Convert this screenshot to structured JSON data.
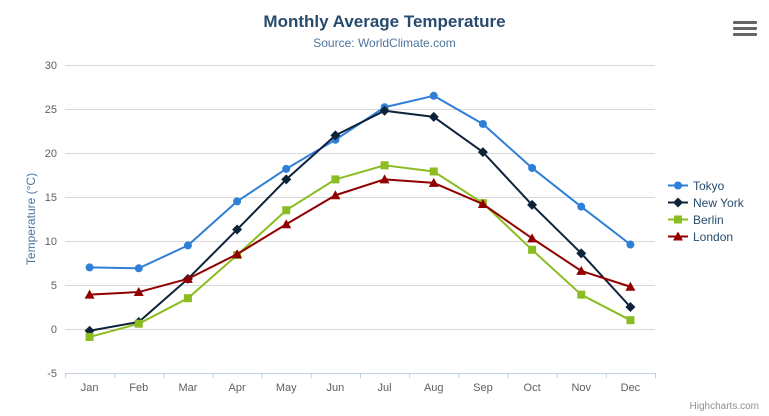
{
  "chart": {
    "title": "Monthly Average Temperature",
    "subtitle": "Source: WorldClimate.com",
    "credits": "Highcharts.com"
  },
  "theme": {
    "title_color": "#274b6d",
    "subtitle_color": "#4d759e",
    "axis_label_color": "#606060",
    "axis_title_color": "#4d759e",
    "legend_text_color": "#274b6d",
    "grid_color": "#d8d8d8",
    "axis_line_color": "#c0d0e0",
    "credits_color": "#909090",
    "menu_icon_color": "#666666",
    "background": "#ffffff"
  },
  "chart_data": {
    "type": "line",
    "title": "Monthly Average Temperature",
    "subtitle": "Source: WorldClimate.com",
    "xlabel": "",
    "ylabel": "Temperature (°C)",
    "ylim": [
      -5,
      30
    ],
    "tick_interval": 5,
    "grid": true,
    "legend_position": "right",
    "categories": [
      "Jan",
      "Feb",
      "Mar",
      "Apr",
      "May",
      "Jun",
      "Jul",
      "Aug",
      "Sep",
      "Oct",
      "Nov",
      "Dec"
    ],
    "series": [
      {
        "name": "Tokyo",
        "color": "#2f7ed8",
        "symbol": "circle",
        "values": [
          7.0,
          6.9,
          9.5,
          14.5,
          18.2,
          21.5,
          25.2,
          26.5,
          23.3,
          18.3,
          13.9,
          9.6
        ]
      },
      {
        "name": "New York",
        "color": "#0d233a",
        "symbol": "diamond",
        "values": [
          -0.2,
          0.8,
          5.7,
          11.3,
          17.0,
          22.0,
          24.8,
          24.1,
          20.1,
          14.1,
          8.6,
          2.5
        ]
      },
      {
        "name": "Berlin",
        "color": "#8bbc21",
        "symbol": "square",
        "values": [
          -0.9,
          0.6,
          3.5,
          8.4,
          13.5,
          17.0,
          18.6,
          17.9,
          14.3,
          9.0,
          3.9,
          1.0
        ]
      },
      {
        "name": "London",
        "color": "#910000",
        "symbol": "triangle",
        "values": [
          3.9,
          4.2,
          5.7,
          8.5,
          11.9,
          15.2,
          17.0,
          16.6,
          14.2,
          10.3,
          6.6,
          4.8
        ]
      }
    ]
  }
}
